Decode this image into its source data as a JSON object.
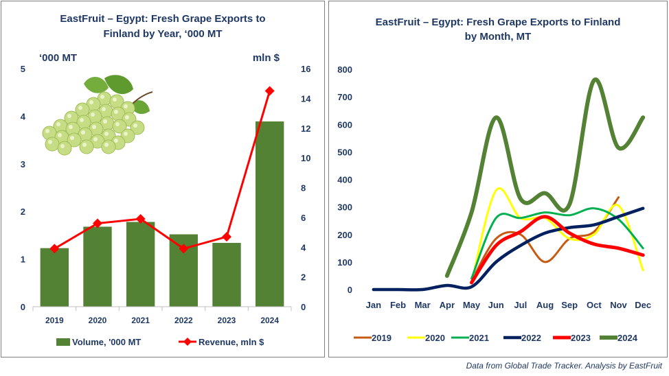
{
  "footer": "Data from Global Trade Tracker. Analysis by  EastFruit",
  "left_chart_title_1": "EastFruit – Egypt: Fresh Grape Exports to",
  "left_chart_title_2": "Finland by Year, ‘000 MT",
  "right_chart_title_1": "EastFruit – Egypt: Fresh Grape Exports to Finland",
  "right_chart_title_2": "by Month, MT",
  "left_y_unit": "‘000 MT",
  "right_y_unit": "mln $",
  "image": "green-grapes-illustration",
  "colors": {
    "bar": "#548235",
    "revenue": "#ff0000",
    "2019": "#c55a11",
    "2020": "#ffff00",
    "2021": "#00b050",
    "2022": "#002060",
    "2023": "#ff0000",
    "2024": "#548235"
  },
  "chart_data": [
    {
      "type": "bar",
      "title": "EastFruit – Egypt: Fresh Grape Exports to Finland by Year, ‘000 MT",
      "categories": [
        "2019",
        "2020",
        "2021",
        "2022",
        "2023",
        "2024"
      ],
      "series": [
        {
          "name": "Volume, '000 MT",
          "type": "bar",
          "axis": "left",
          "values": [
            1.23,
            1.68,
            1.78,
            1.52,
            1.34,
            3.89
          ]
        },
        {
          "name": "Revenue, mln $",
          "type": "line",
          "axis": "right",
          "values": [
            3.9,
            5.6,
            5.9,
            3.9,
            4.7,
            14.5
          ]
        }
      ],
      "ylim": [
        0,
        5
      ],
      "y_ticks": [
        "0",
        "1",
        "2",
        "3",
        "4",
        "5"
      ],
      "y2lim": [
        0,
        16
      ],
      "y2_ticks": [
        "0",
        "2",
        "4",
        "6",
        "8",
        "10",
        "12",
        "14",
        "16"
      ],
      "legend_position": "bottom"
    },
    {
      "type": "line",
      "title": "EastFruit – Egypt: Fresh Grape Exports to Finland by Month, MT",
      "categories": [
        "Jan",
        "Feb",
        "Mar",
        "Apr",
        "May",
        "Jun",
        "Jul",
        "Aug",
        "Sep",
        "Oct",
        "Nov",
        "Dec"
      ],
      "series": [
        {
          "name": "2019",
          "values": [
            null,
            null,
            null,
            null,
            30,
            185,
            200,
            100,
            185,
            210,
            335,
            null
          ]
        },
        {
          "name": "2020",
          "values": [
            null,
            null,
            null,
            null,
            25,
            360,
            260,
            260,
            185,
            200,
            305,
            70
          ]
        },
        {
          "name": "2021",
          "values": [
            null,
            null,
            null,
            null,
            40,
            260,
            260,
            280,
            270,
            295,
            255,
            150
          ]
        },
        {
          "name": "2022",
          "values": [
            0,
            0,
            0,
            15,
            10,
            100,
            160,
            205,
            225,
            235,
            265,
            295
          ]
        },
        {
          "name": "2023",
          "values": [
            null,
            null,
            null,
            null,
            25,
            160,
            210,
            265,
            205,
            165,
            150,
            125
          ]
        },
        {
          "name": "2024",
          "values": [
            null,
            null,
            null,
            50,
            280,
            625,
            330,
            350,
            310,
            760,
            515,
            625
          ]
        }
      ],
      "ylim": [
        0,
        800
      ],
      "y_ticks": [
        "0",
        "100",
        "200",
        "300",
        "400",
        "500",
        "600",
        "700",
        "800"
      ],
      "legend_position": "bottom"
    }
  ]
}
